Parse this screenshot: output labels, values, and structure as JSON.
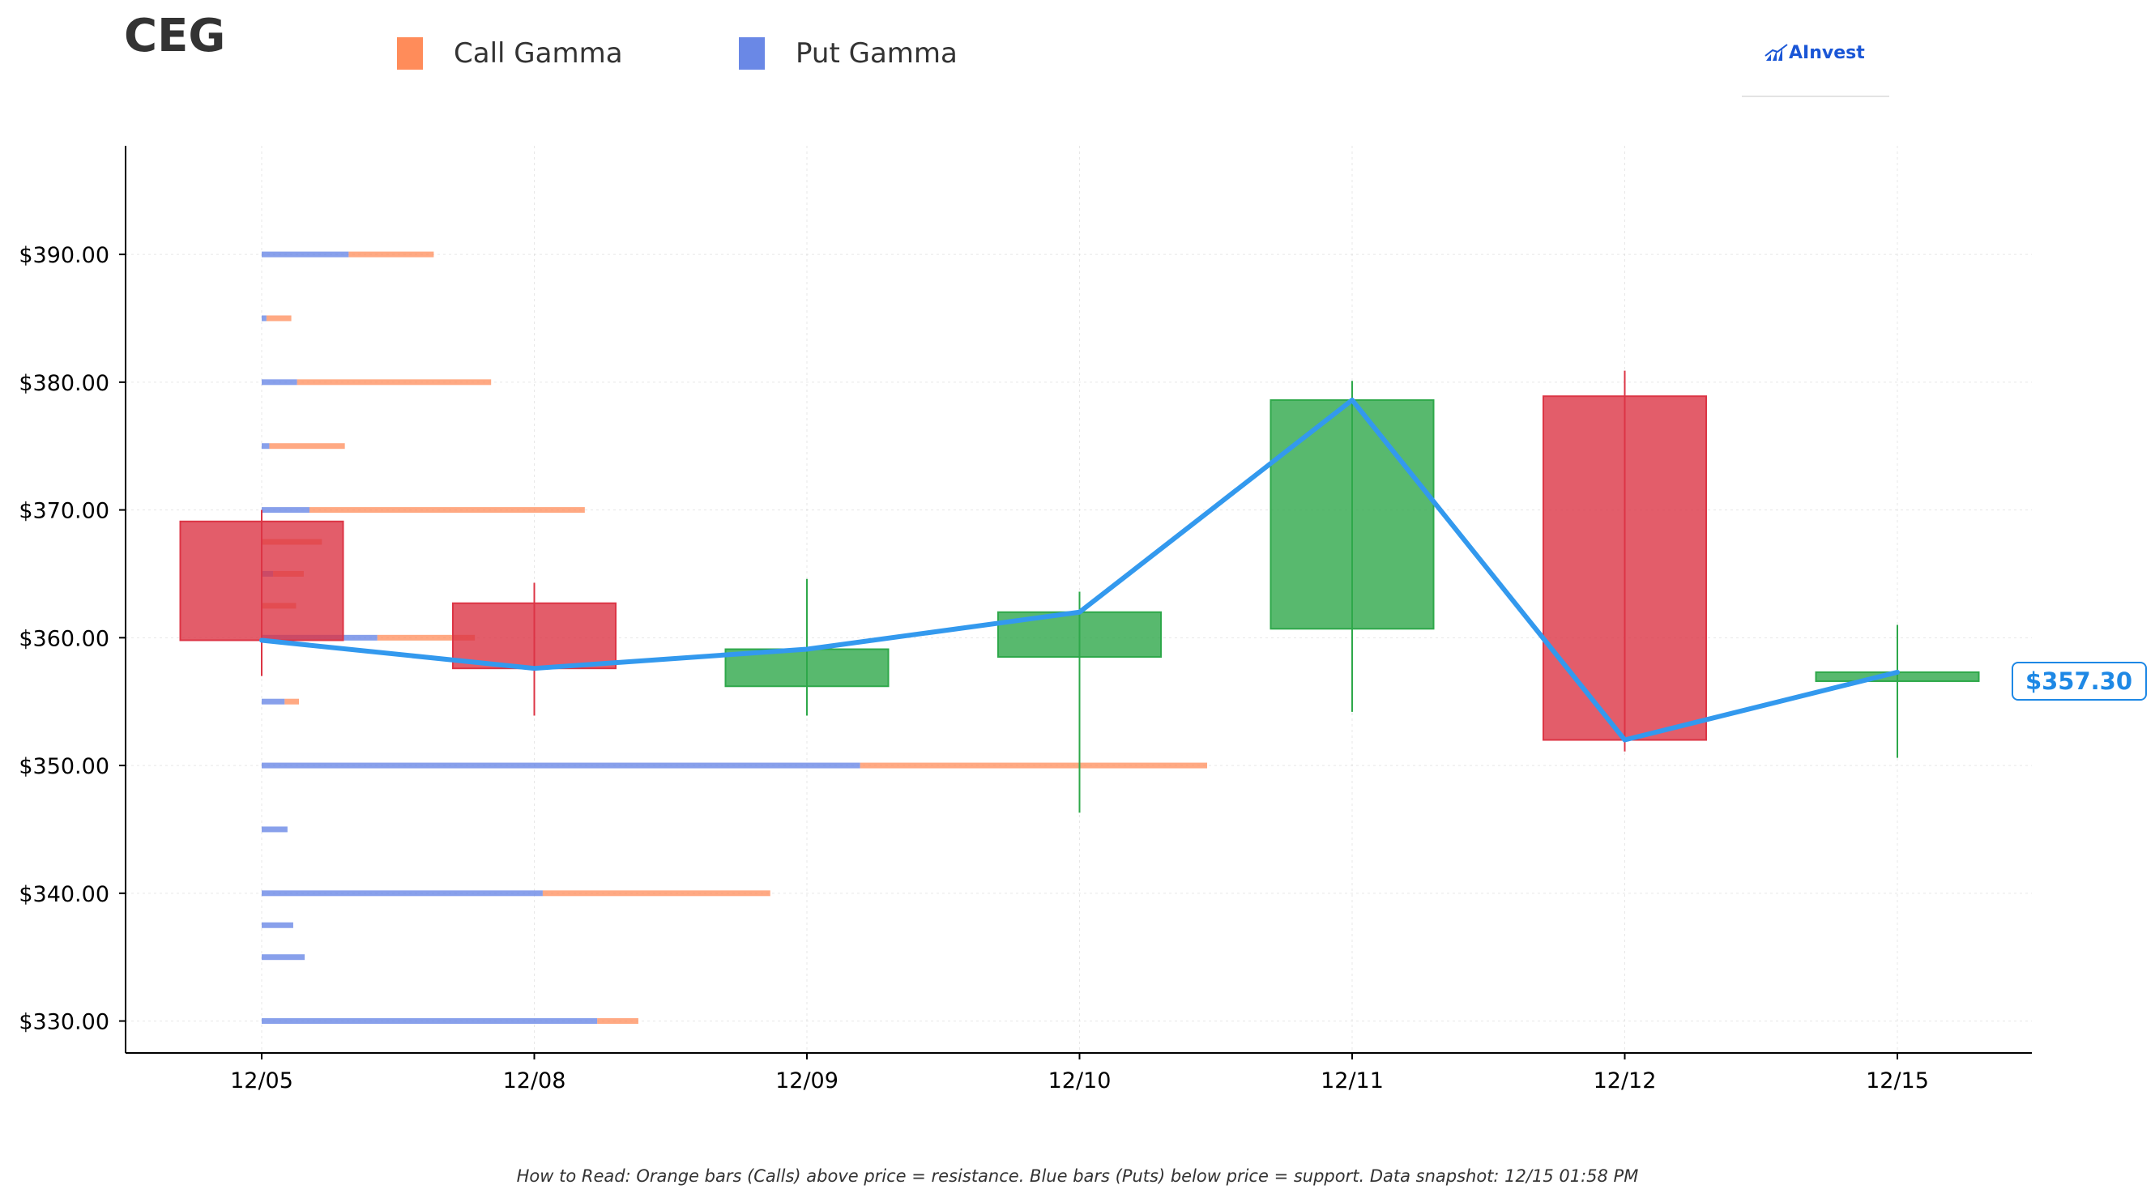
{
  "ticker": "CEG",
  "legend": [
    {
      "label": "Call Gamma",
      "color": "#ff8c5a"
    },
    {
      "label": "Put Gamma",
      "color": "#6a88e6"
    }
  ],
  "brand": {
    "name": "AInvest",
    "color": "#1a56d6"
  },
  "footnote": "How to Read: Orange bars (Calls) above price = resistance. Blue bars (Puts) below price = support. Data snapshot: 12/15 01:58 PM",
  "chart_data": {
    "type": "candlestick",
    "categories": [
      "12/05",
      "12/08",
      "12/09",
      "12/10",
      "12/11",
      "12/12",
      "12/15"
    ],
    "ylim": [
      327.5,
      398.5
    ],
    "y_ticks": [
      330,
      340,
      350,
      360,
      370,
      380,
      390
    ],
    "y_tick_labels": [
      "$330.00",
      "$340.00",
      "$350.00",
      "$360.00",
      "$370.00",
      "$380.00",
      "$390.00"
    ],
    "grid": true,
    "candles": [
      {
        "date": "12/05",
        "open": 369.1,
        "high": 370.0,
        "low": 357.0,
        "close": 359.8
      },
      {
        "date": "12/08",
        "open": 362.7,
        "high": 364.3,
        "low": 353.9,
        "close": 357.6
      },
      {
        "date": "12/09",
        "open": 356.2,
        "high": 364.6,
        "low": 353.9,
        "close": 359.1
      },
      {
        "date": "12/10",
        "open": 358.5,
        "high": 363.6,
        "low": 346.3,
        "close": 362.0
      },
      {
        "date": "12/11",
        "open": 360.7,
        "high": 380.1,
        "low": 354.2,
        "close": 378.6
      },
      {
        "date": "12/12",
        "open": 378.9,
        "high": 380.9,
        "low": 351.1,
        "close": 352.0
      },
      {
        "date": "12/15",
        "open": 356.6,
        "high": 361.0,
        "low": 350.6,
        "close": 357.3
      }
    ],
    "close_line": {
      "color": "#3399ee"
    },
    "last_price_label": "$357.30",
    "gamma_scale_max": 100,
    "gamma": [
      {
        "strike": 390.0,
        "put": 9.1,
        "call": 8.9
      },
      {
        "strike": 385.0,
        "put": 0.5,
        "call": 2.6
      },
      {
        "strike": 380.0,
        "put": 3.7,
        "call": 20.3
      },
      {
        "strike": 375.0,
        "put": 0.8,
        "call": 7.9
      },
      {
        "strike": 370.0,
        "put": 5.0,
        "call": 28.8
      },
      {
        "strike": 367.5,
        "put": 0.0,
        "call": 6.3
      },
      {
        "strike": 365.0,
        "put": 1.2,
        "call": 3.2
      },
      {
        "strike": 362.5,
        "put": 0.0,
        "call": 3.6
      },
      {
        "strike": 360.0,
        "put": 12.1,
        "call": 10.2
      },
      {
        "strike": 355.0,
        "put": 2.4,
        "call": 1.5
      },
      {
        "strike": 350.0,
        "put": 62.6,
        "call": 36.3
      },
      {
        "strike": 345.0,
        "put": 2.7,
        "call": 0.0
      },
      {
        "strike": 340.0,
        "put": 29.4,
        "call": 23.8
      },
      {
        "strike": 337.5,
        "put": 3.3,
        "call": 0.0
      },
      {
        "strike": 335.0,
        "put": 4.5,
        "call": 0.0
      },
      {
        "strike": 330.0,
        "put": 35.1,
        "call": 4.3
      }
    ],
    "colors": {
      "up": "#2ea84a",
      "down": "#dc3545",
      "call": "#ff8c5a",
      "put": "#6a88e6",
      "line": "#3399ee"
    }
  }
}
